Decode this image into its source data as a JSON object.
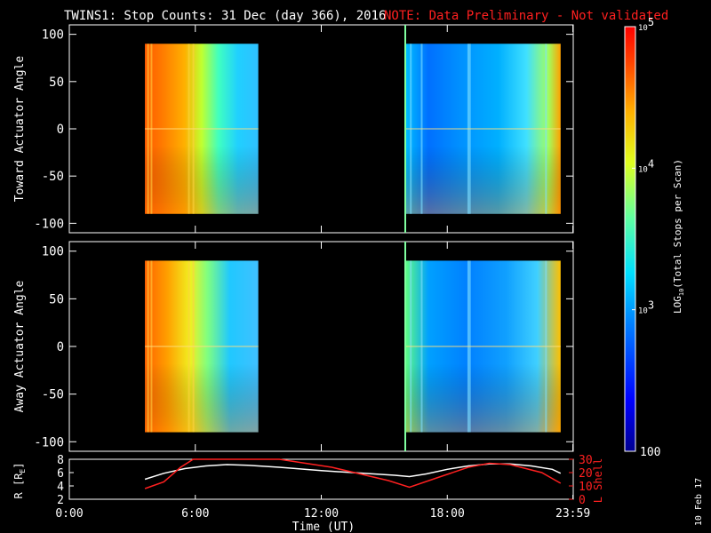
{
  "title": {
    "main": "TWINS1: Stop Counts: 31 Dec (day 366), 2016",
    "note": "NOTE: Data Preliminary - Not validated",
    "note_color": "#ff2020"
  },
  "footer_date": "10 Feb 17",
  "colors": {
    "background": "#000000",
    "axes": "#ffffff",
    "lshell": "#ff2020",
    "radius": "#ffffff"
  },
  "chart_data": [
    {
      "type": "heatmap",
      "panel": "toward",
      "ylabel": "Toward Actuator Angle",
      "ylim": [
        -110,
        110
      ],
      "yticks": [
        100,
        50,
        0,
        -50,
        -100
      ],
      "xlim": [
        0,
        24
      ],
      "data_blocks": [
        {
          "t_start": 3.6,
          "t_end": 9.0,
          "angle_min": -90,
          "angle_max": 90
        },
        {
          "t_start": 16.0,
          "t_end": 23.4,
          "angle_min": -90,
          "angle_max": 90
        }
      ]
    },
    {
      "type": "heatmap",
      "panel": "away",
      "ylabel": "Away Actuator Angle",
      "ylim": [
        -110,
        110
      ],
      "yticks": [
        100,
        50,
        0,
        -50,
        -100
      ],
      "xlim": [
        0,
        24
      ],
      "data_blocks": [
        {
          "t_start": 3.6,
          "t_end": 9.0,
          "angle_min": -90,
          "angle_max": 90
        },
        {
          "t_start": 16.0,
          "t_end": 23.4,
          "angle_min": -90,
          "angle_max": 90
        }
      ]
    },
    {
      "type": "line",
      "panel": "orbit",
      "xlabel": "Time (UT)",
      "xticks": [
        "0:00",
        "6:00",
        "12:00",
        "18:00",
        "23:59"
      ],
      "xtick_values": [
        0,
        6,
        12,
        18,
        23.983
      ],
      "left_axis": {
        "label": "R [R",
        "label_sub": "E",
        "label_close": "]",
        "ylim": [
          2,
          8
        ],
        "yticks": [
          8,
          6,
          4,
          2
        ]
      },
      "right_axis": {
        "label": "L Shell",
        "ylim": [
          0,
          30
        ],
        "yticks": [
          30,
          20,
          10,
          0
        ]
      },
      "series": [
        {
          "name": "R",
          "axis": "left",
          "color": "#ffffff",
          "x": [
            3.6,
            4.5,
            5.5,
            6.5,
            7.5,
            8.5,
            10,
            12,
            14,
            15.5,
            16.2,
            17,
            18,
            19,
            20,
            21,
            22,
            23,
            23.4
          ],
          "y": [
            5.0,
            5.9,
            6.6,
            7.0,
            7.2,
            7.1,
            6.8,
            6.3,
            5.9,
            5.6,
            5.4,
            5.8,
            6.5,
            7.0,
            7.3,
            7.3,
            7.0,
            6.5,
            5.9
          ]
        },
        {
          "name": "L Shell",
          "axis": "right",
          "color": "#ff2020",
          "x": [
            3.6,
            4.5,
            5.3,
            5.9,
            10.0,
            12.5,
            15.2,
            16.2,
            17.5,
            19,
            20,
            21,
            22.5,
            23.4
          ],
          "y": [
            8,
            13,
            24,
            31,
            31,
            24,
            14,
            9,
            16,
            24,
            27,
            26,
            20,
            12
          ]
        }
      ]
    },
    {
      "type": "colorbar",
      "label": "LOG",
      "label_sub": "10",
      "label_rest": "(Total Stops per Scan)",
      "scale": "log",
      "range": [
        100,
        100000
      ],
      "ticks": [
        {
          "value": 100000,
          "base": "10",
          "exp": "5"
        },
        {
          "value": 10000,
          "base": "10",
          "exp": "4"
        },
        {
          "value": 1000,
          "base": "10",
          "exp": "3"
        },
        {
          "value": 100,
          "text": "100"
        }
      ]
    }
  ]
}
